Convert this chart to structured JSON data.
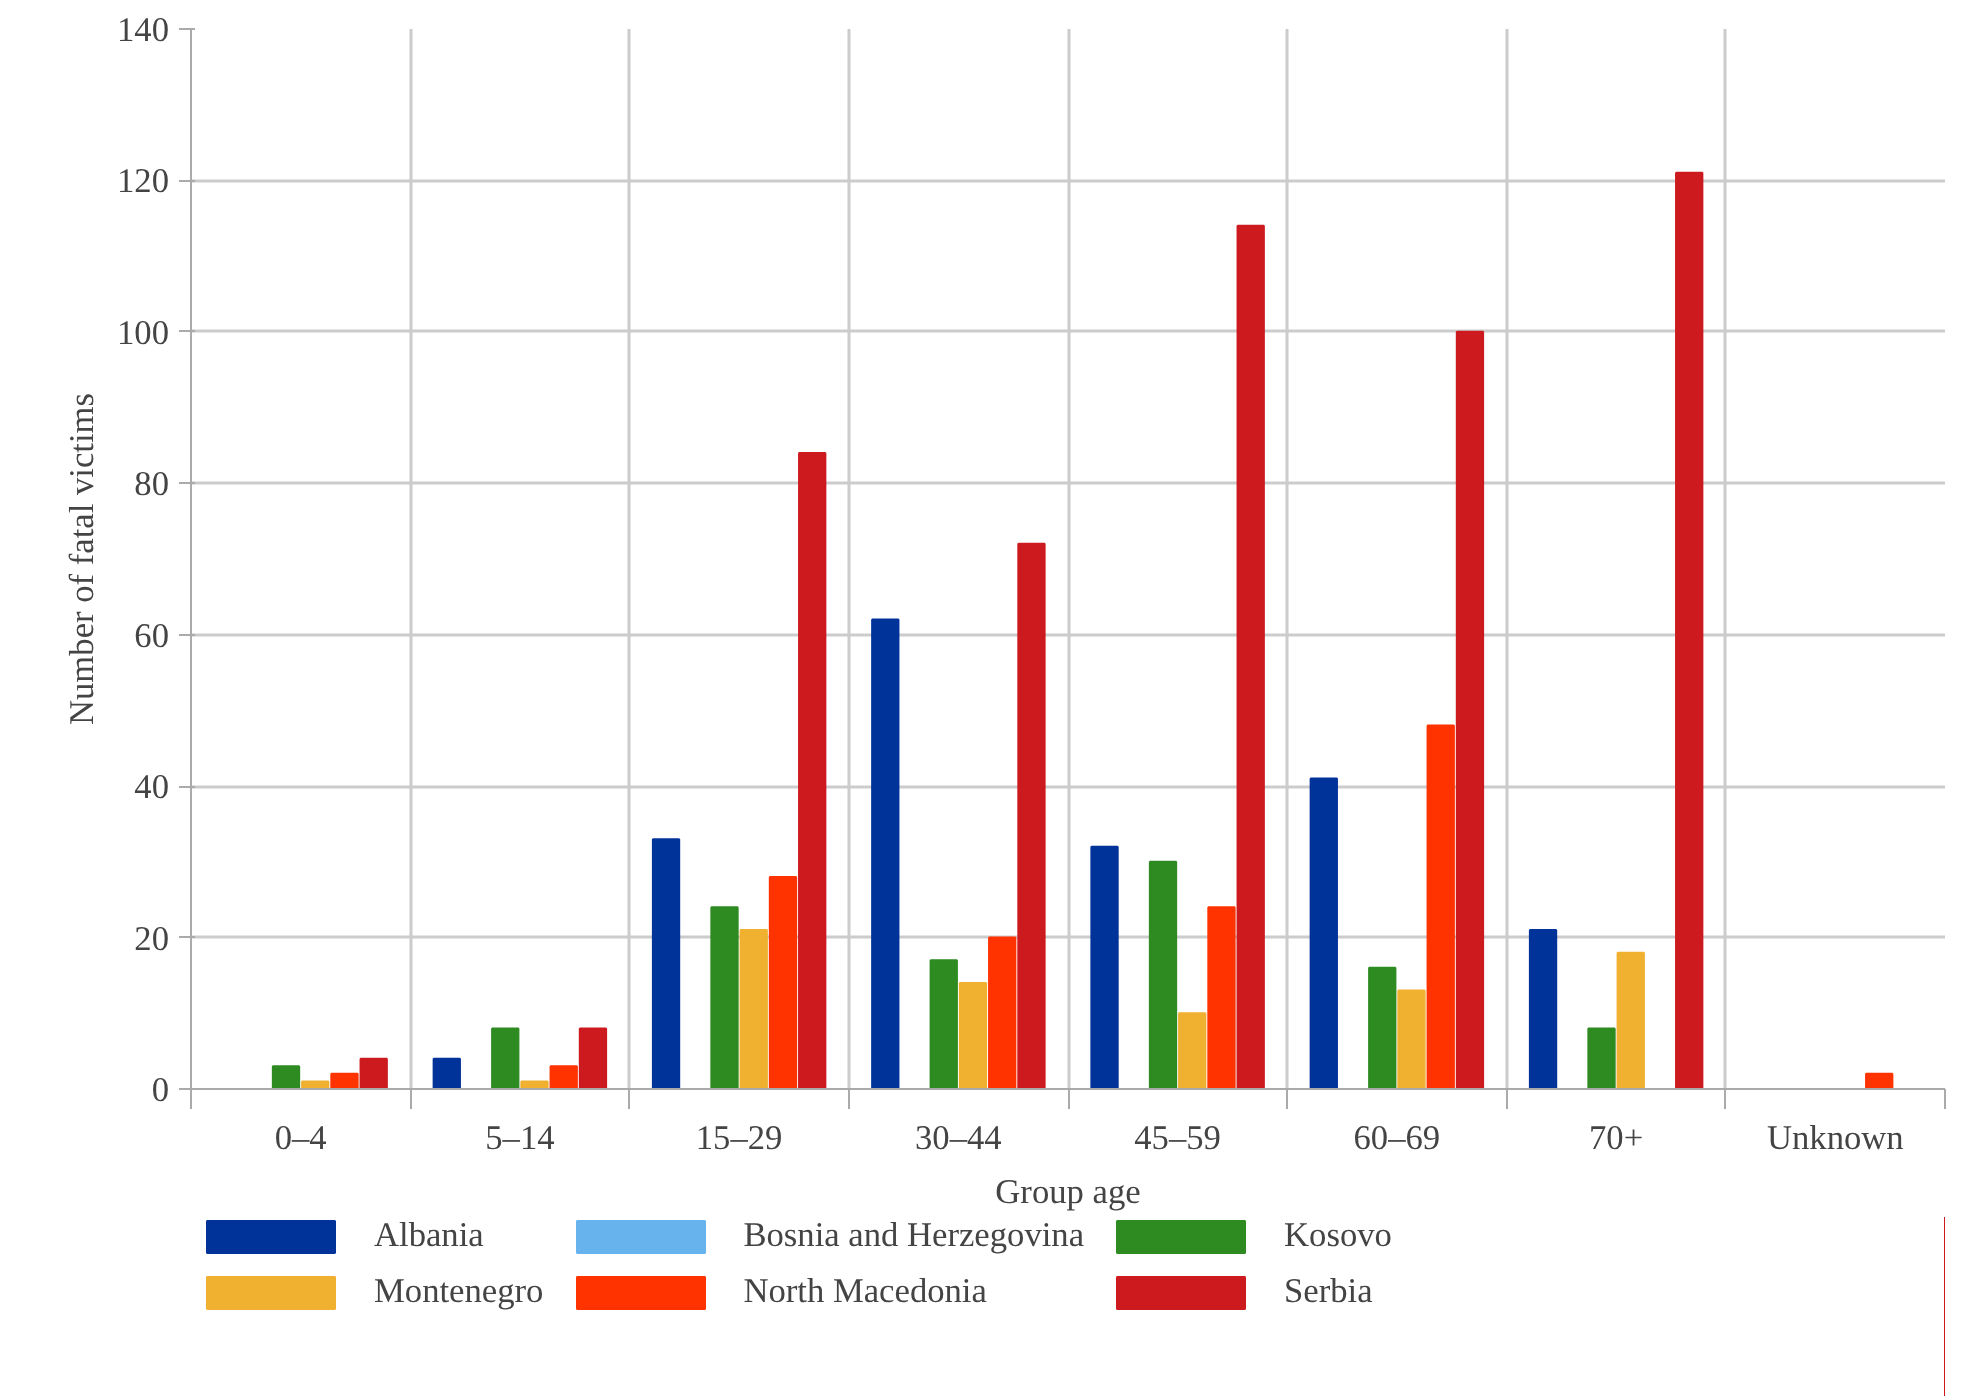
{
  "chart_data": {
    "type": "bar",
    "xlabel": "Group age",
    "ylabel": "Number of fatal victims",
    "categories": [
      "0–4",
      "5–14",
      "15–29",
      "30–44",
      "45–59",
      "60–69",
      "70+",
      "Unknown"
    ],
    "series": [
      {
        "name": "Albania",
        "color": "#003399",
        "values": [
          0,
          4,
          33,
          62,
          32,
          41,
          21,
          0
        ]
      },
      {
        "name": "Bosnia and Herzegovina",
        "color": "#66b3ee",
        "values": [
          0,
          0,
          0,
          0,
          0,
          0,
          0,
          0
        ]
      },
      {
        "name": "Kosovo",
        "color": "#2e8b22",
        "values": [
          3,
          8,
          24,
          17,
          30,
          16,
          8,
          0
        ]
      },
      {
        "name": "Montenegro",
        "color": "#f0b030",
        "values": [
          1,
          1,
          21,
          14,
          10,
          13,
          18,
          0
        ]
      },
      {
        "name": "North Macedonia",
        "color": "#ff3300",
        "values": [
          2,
          3,
          28,
          20,
          24,
          48,
          0,
          2
        ]
      },
      {
        "name": "Serbia",
        "color": "#cc1a1e",
        "values": [
          4,
          8,
          84,
          72,
          114,
          100,
          121,
          0
        ]
      }
    ],
    "ylim": [
      0,
      140
    ],
    "yticks": [
      0,
      20,
      40,
      60,
      80,
      100,
      120,
      140
    ],
    "grid": true,
    "legend": "bottom"
  }
}
